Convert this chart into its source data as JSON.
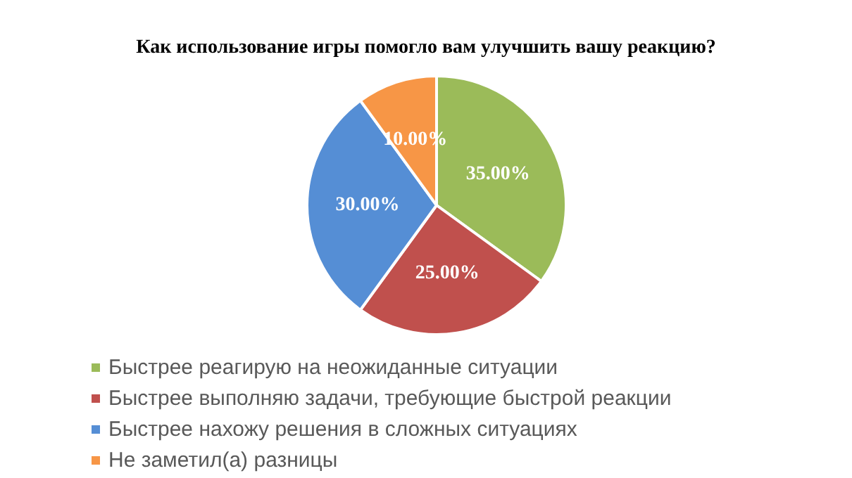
{
  "chart_data": {
    "type": "pie",
    "title": "Как использование игры помогло вам улучшить вашу реакцию?",
    "categories": [
      "Быстрее реагирую на неожиданные ситуации",
      "Быстрее выполняю задачи, требующие быстрой реакции",
      "Быстрее нахожу решения в сложных ситуациях",
      "Не заметил(а) разницы"
    ],
    "values": [
      35,
      25,
      30,
      10
    ],
    "value_labels": [
      "35.00%",
      "25.00%",
      "30.00%",
      "10.00%"
    ],
    "colors": [
      "#9bbb59",
      "#c0504d",
      "#558ed5",
      "#f79646"
    ],
    "legend": "bottom"
  }
}
